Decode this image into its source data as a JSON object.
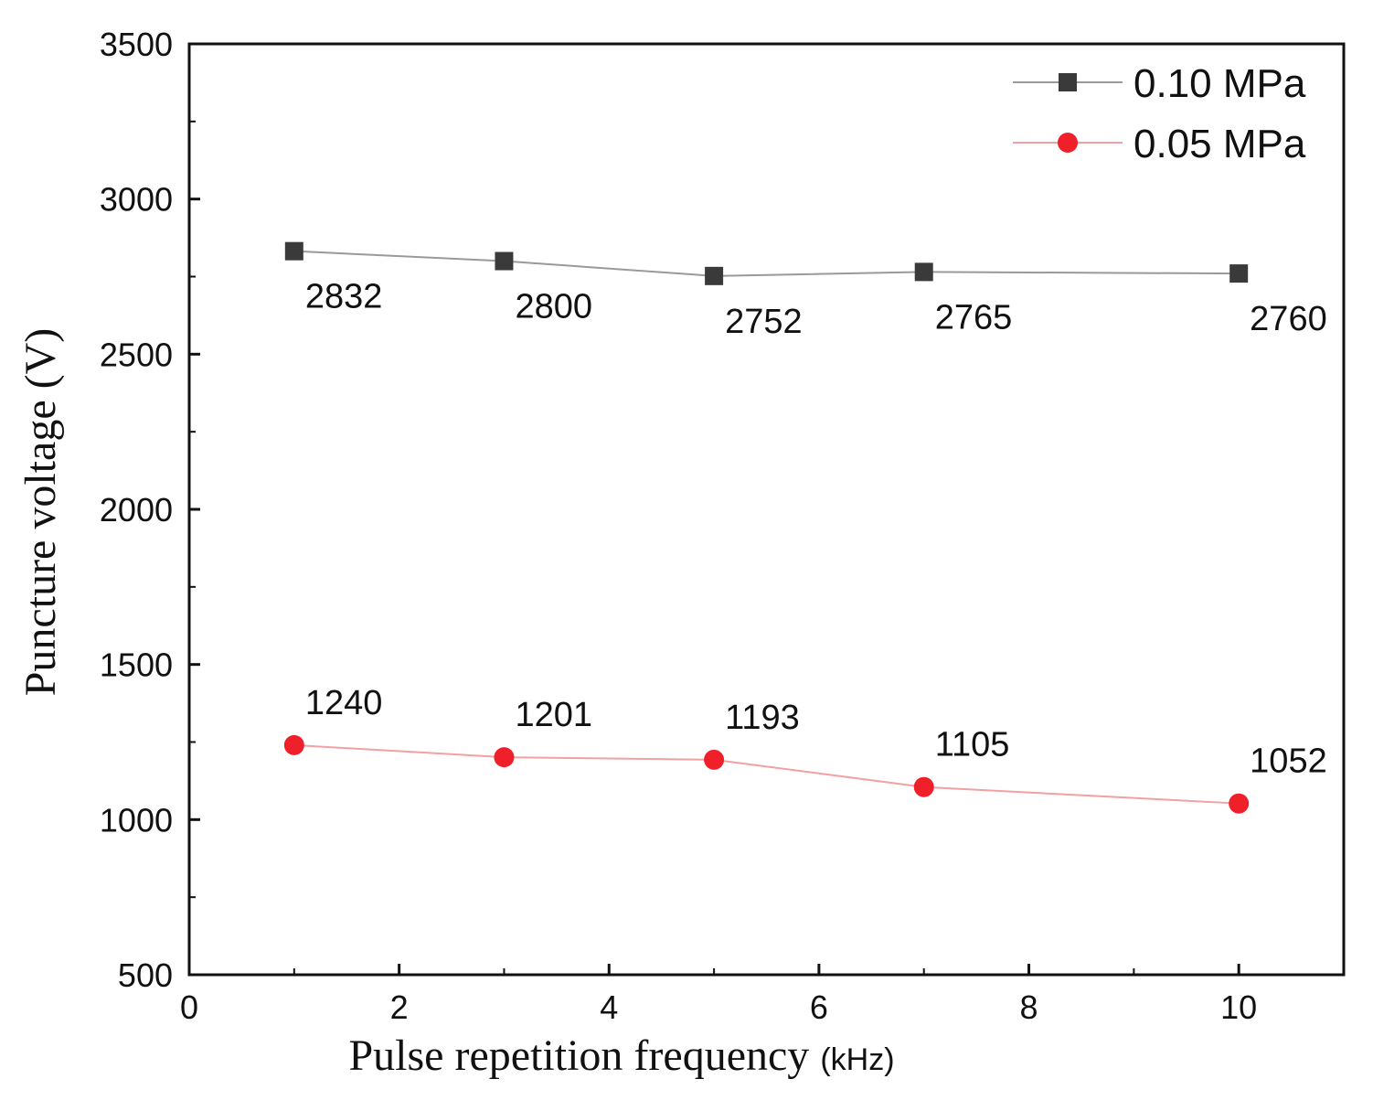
{
  "chart_data": {
    "type": "line",
    "title": "",
    "xlabel": "Pulse repetition frequency",
    "xlabel_unit": "(kHz)",
    "ylabel": "Puncture voltage (V)",
    "xlim": [
      0,
      11
    ],
    "ylim": [
      500,
      3500
    ],
    "xticks": [
      0,
      2,
      4,
      6,
      8,
      10
    ],
    "xtick_labels": [
      "0",
      "2",
      "4",
      "6",
      "8",
      "10"
    ],
    "yticks": [
      500,
      1000,
      1500,
      2000,
      2500,
      3000,
      3500
    ],
    "ytick_labels": [
      "500",
      "1000",
      "1500",
      "2000",
      "2500",
      "3000",
      "3500"
    ],
    "grid": false,
    "legend_position": "top-right",
    "x": [
      1,
      3,
      5,
      7,
      10
    ],
    "series": [
      {
        "name": "0.10 MPa",
        "marker": "square",
        "marker_color": "#3a3a3a",
        "line_color": "#9a9a9a",
        "values": [
          2832,
          2800,
          2752,
          2765,
          2760
        ],
        "data_labels": [
          "2832",
          "2800",
          "2752",
          "2765",
          "2760"
        ],
        "label_position": "below"
      },
      {
        "name": "0.05 MPa",
        "marker": "circle",
        "marker_color": "#f0202a",
        "line_color": "#f2a0a4",
        "values": [
          1240,
          1201,
          1193,
          1105,
          1052
        ],
        "data_labels": [
          "1240",
          "1201",
          "1193",
          "1105",
          "1052"
        ],
        "label_position": "above"
      }
    ]
  }
}
